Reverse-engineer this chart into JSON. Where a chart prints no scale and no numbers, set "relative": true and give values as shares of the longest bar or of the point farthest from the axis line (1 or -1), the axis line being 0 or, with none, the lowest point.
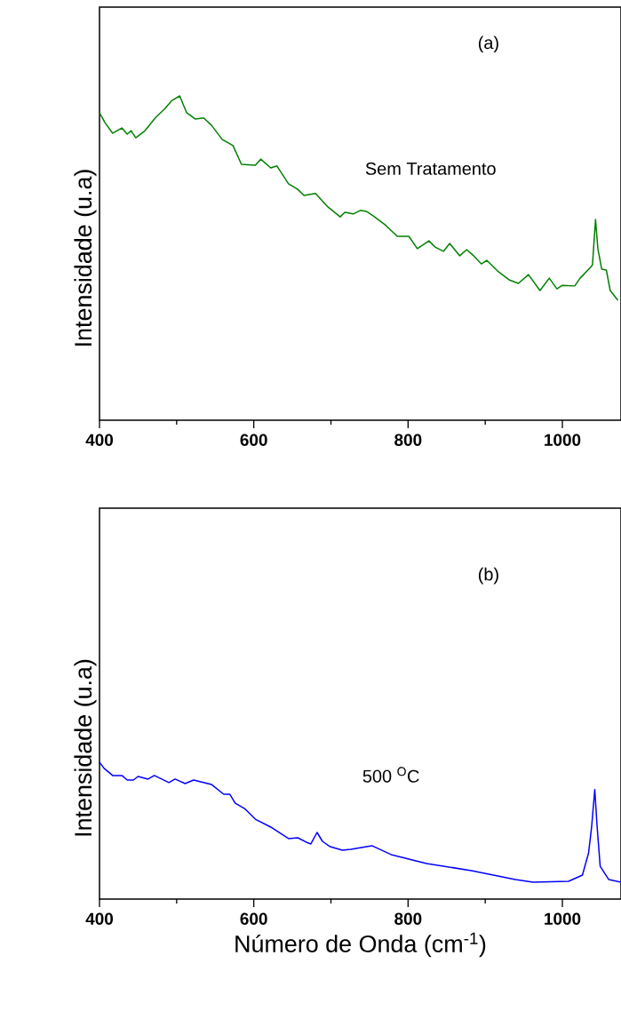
{
  "chart_data": [
    {
      "type": "line",
      "relative": true,
      "ylabel": "Intensidade (u.a)",
      "xlim": [
        400,
        1076
      ],
      "xticks": [
        400,
        {
          "value": 500,
          "label": null
        },
        600,
        {
          "value": 700,
          "label": null
        },
        800,
        {
          "value": 900,
          "label": null
        },
        1000
      ],
      "annotations": [
        "(a)",
        "Sem Tratamento"
      ],
      "marker": "none",
      "line_style": "solid",
      "series": [
        {
          "color": "#008000",
          "x": [
            400,
            407,
            417,
            429,
            436,
            441,
            447,
            459,
            473,
            484,
            494,
            504,
            513,
            524,
            535,
            545,
            559,
            573,
            584,
            602,
            609,
            622,
            630,
            645,
            657,
            665,
            680,
            695,
            712,
            718,
            729,
            738,
            746,
            755,
            770,
            786,
            801,
            812,
            827,
            835,
            846,
            854,
            867,
            876,
            885,
            895,
            902,
            916,
            931,
            943,
            956,
            971,
            983,
            993,
            1000,
            1016,
            1023,
            1035,
            1039,
            1043,
            1046,
            1051,
            1057,
            1062,
            1072
          ],
          "values": [
            0.948,
            0.918,
            0.885,
            0.901,
            0.882,
            0.893,
            0.871,
            0.893,
            0.934,
            0.959,
            0.986,
            1.0,
            0.948,
            0.929,
            0.932,
            0.91,
            0.866,
            0.847,
            0.789,
            0.786,
            0.805,
            0.778,
            0.784,
            0.729,
            0.712,
            0.693,
            0.699,
            0.66,
            0.627,
            0.641,
            0.636,
            0.647,
            0.644,
            0.63,
            0.603,
            0.567,
            0.567,
            0.529,
            0.553,
            0.534,
            0.521,
            0.545,
            0.507,
            0.526,
            0.507,
            0.482,
            0.493,
            0.46,
            0.433,
            0.422,
            0.449,
            0.4,
            0.438,
            0.405,
            0.416,
            0.414,
            0.438,
            0.468,
            0.479,
            0.619,
            0.529,
            0.466,
            0.463,
            0.4,
            0.37
          ]
        }
      ]
    },
    {
      "type": "line",
      "relative": true,
      "ylabel": "Intensidade (u.a)",
      "xlabel": "Número de Onda (cm$^{-1}$)",
      "xlim": [
        400,
        1076
      ],
      "xticks": [
        400,
        {
          "value": 500,
          "label": null
        },
        600,
        {
          "value": 700,
          "label": null
        },
        800,
        {
          "value": 900,
          "label": null
        },
        1000
      ],
      "annotations": [
        "(b)",
        "500 $^{O}$C"
      ],
      "marker": "none",
      "line_style": "solid",
      "series": [
        {
          "color": "#0000ff",
          "x": [
            400,
            406,
            417,
            429,
            436,
            444,
            450,
            463,
            471,
            490,
            498,
            511,
            522,
            545,
            561,
            569,
            576,
            588,
            602,
            622,
            645,
            657,
            668,
            674,
            682,
            689,
            699,
            715,
            726,
            753,
            778,
            824,
            882,
            939,
            962,
            1008,
            1026,
            1034,
            1038,
            1042,
            1045,
            1049,
            1060,
            1076
          ],
          "values": [
            1.0,
            0.955,
            0.903,
            0.903,
            0.87,
            0.87,
            0.896,
            0.877,
            0.903,
            0.851,
            0.877,
            0.844,
            0.87,
            0.838,
            0.766,
            0.766,
            0.701,
            0.662,
            0.584,
            0.526,
            0.442,
            0.448,
            0.416,
            0.403,
            0.487,
            0.422,
            0.383,
            0.357,
            0.364,
            0.39,
            0.325,
            0.26,
            0.208,
            0.143,
            0.123,
            0.13,
            0.175,
            0.338,
            0.532,
            0.8,
            0.532,
            0.24,
            0.143,
            0.123
          ]
        }
      ]
    }
  ]
}
